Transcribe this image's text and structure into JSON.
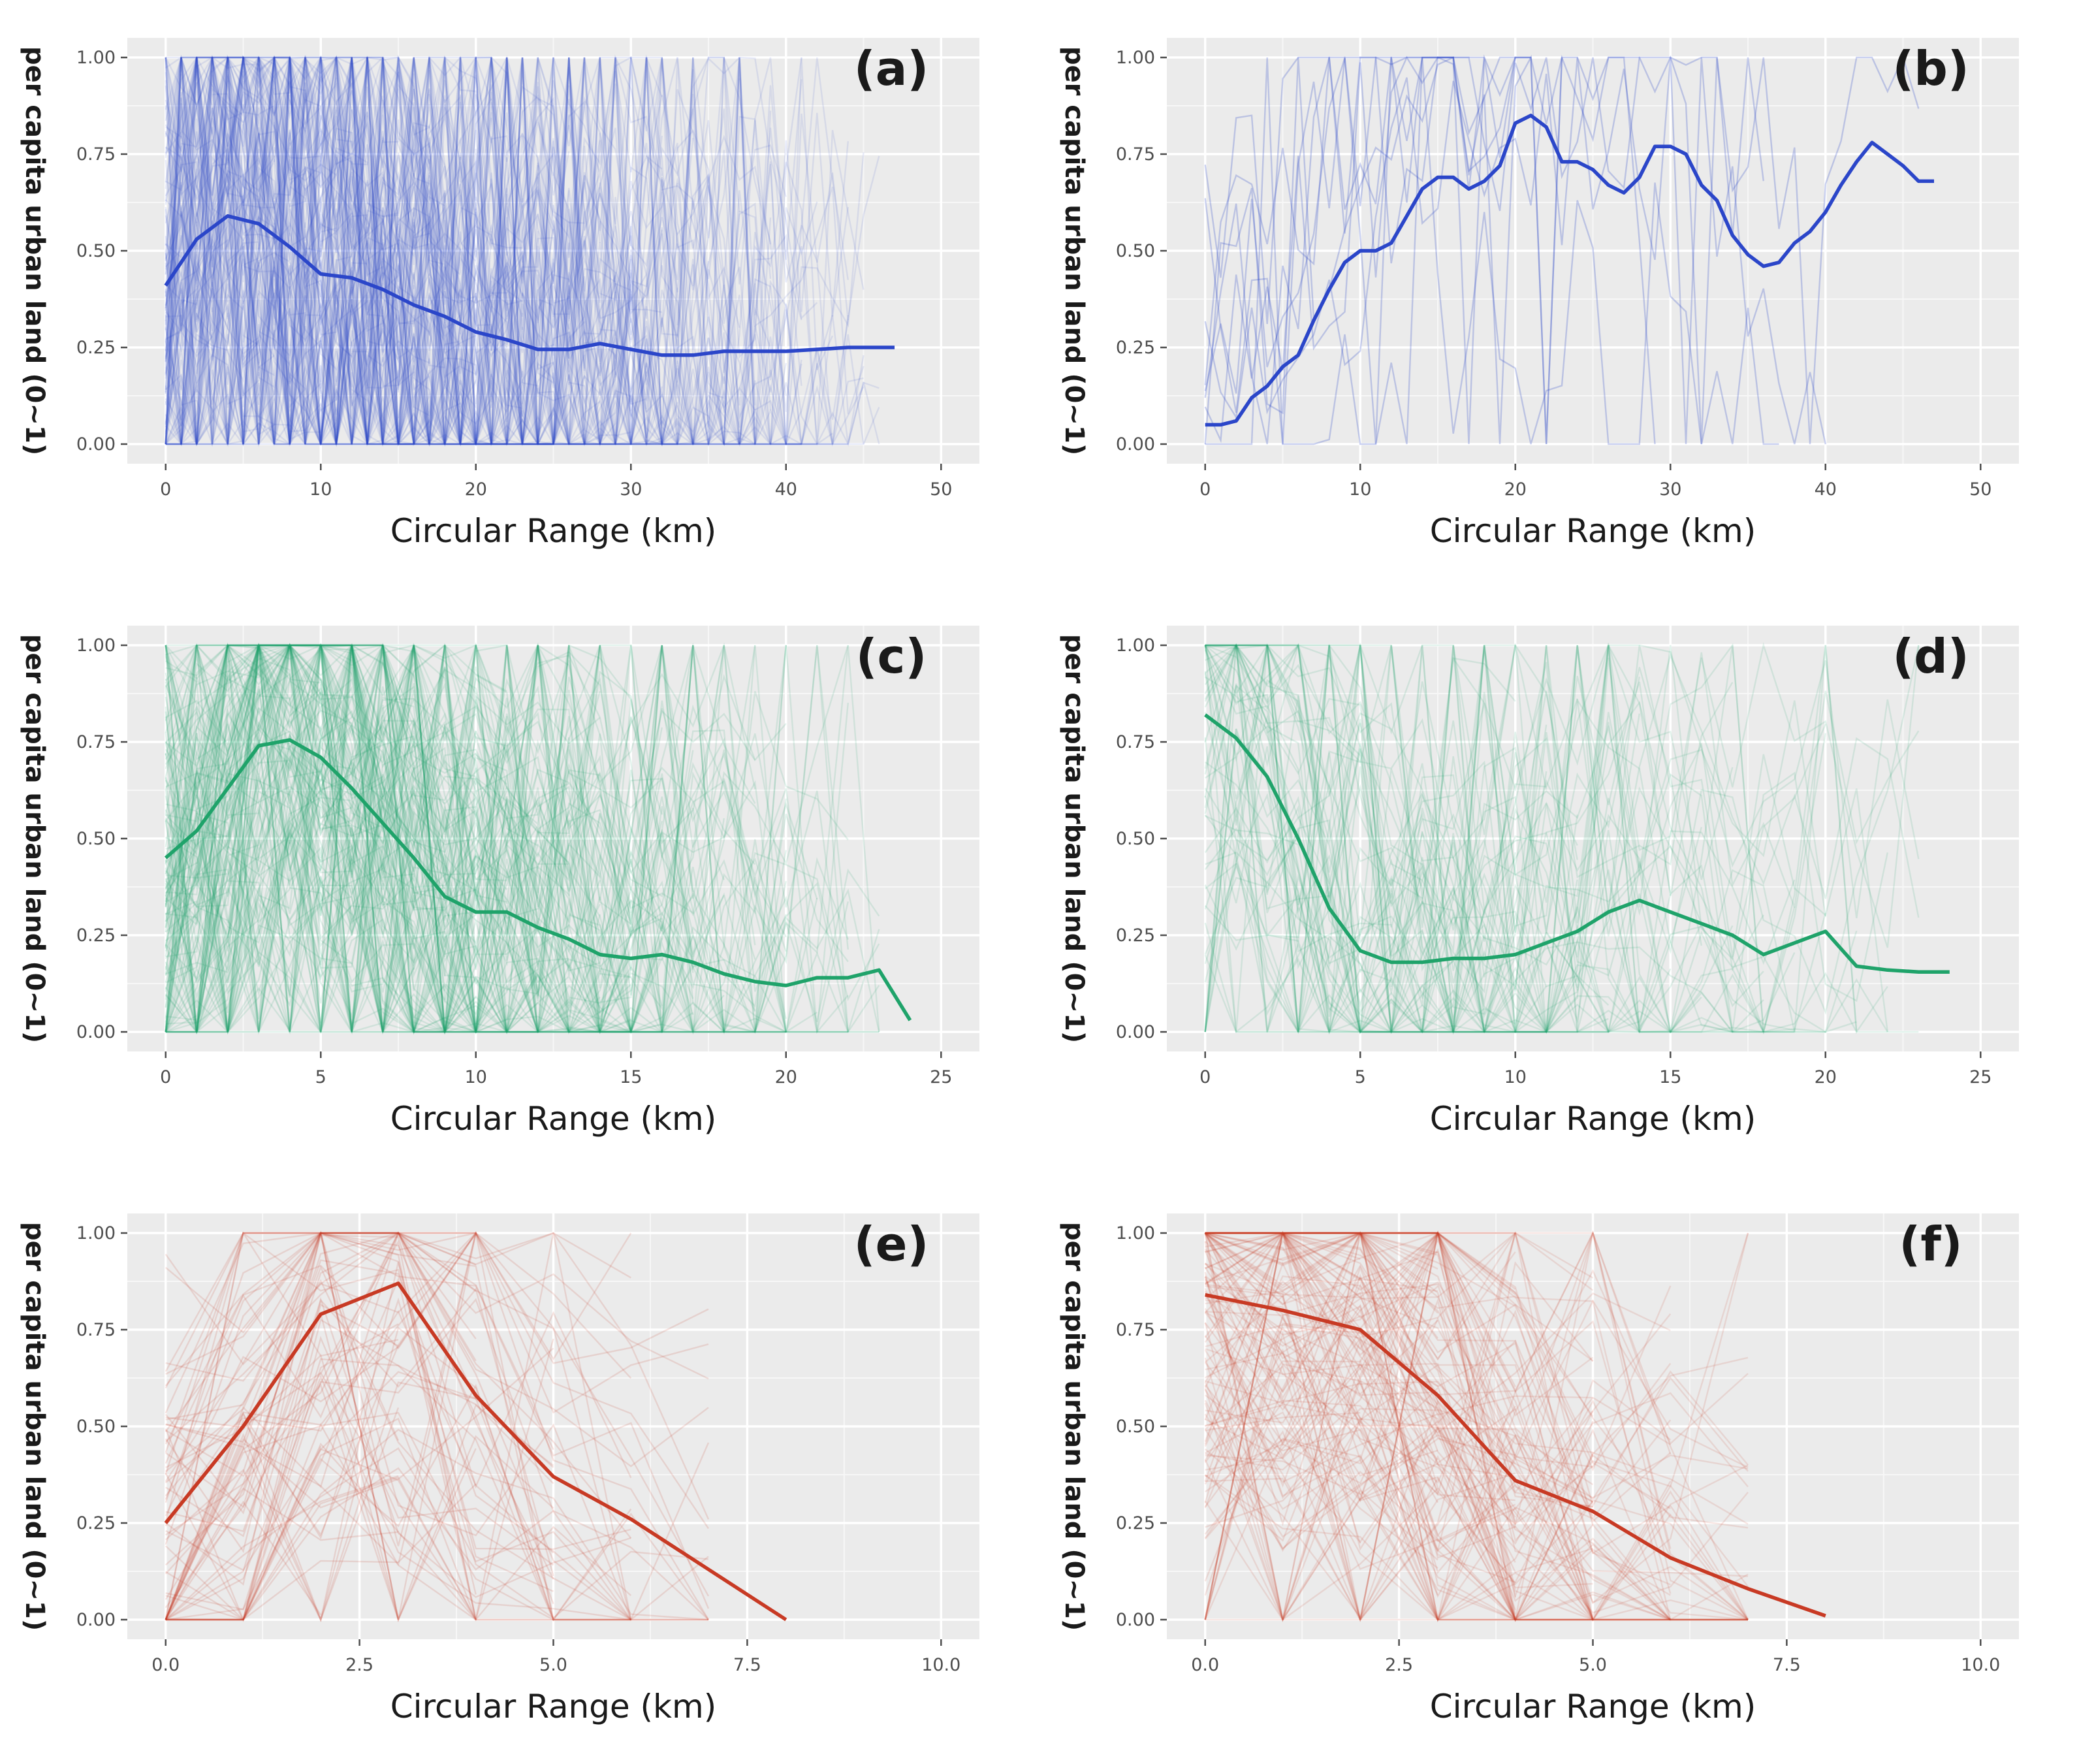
{
  "common": {
    "xlabel": "Circular Range (km)",
    "ylabel": "per capita urban land (0~1)",
    "yticks": [
      "0.00",
      "0.25",
      "0.50",
      "0.75",
      "1.00"
    ]
  },
  "colors": {
    "blue": "#2b46c9",
    "green": "#1fa36a",
    "red": "#c83a24",
    "panel_bg": "#ebebeb",
    "grid": "#ffffff"
  },
  "chart_data": [
    {
      "type": "line",
      "label": "(a)",
      "color": "blue",
      "xlabel": "Circular Range (km)",
      "ylabel": "per capita urban land (0~1)",
      "xlim": [
        0,
        50
      ],
      "ylim": [
        0,
        1
      ],
      "xticks": [
        "0",
        "10",
        "20",
        "30",
        "40",
        "50"
      ],
      "yticks": [
        "0.00",
        "0.25",
        "0.50",
        "0.75",
        "1.00"
      ],
      "grid": true,
      "mean_series": {
        "x": [
          0,
          2,
          4,
          6,
          8,
          10,
          12,
          14,
          16,
          18,
          20,
          22,
          24,
          26,
          28,
          30,
          32,
          34,
          36,
          38,
          40,
          42,
          44,
          46,
          47
        ],
        "y": [
          0.41,
          0.53,
          0.59,
          0.57,
          0.51,
          0.44,
          0.43,
          0.4,
          0.36,
          0.33,
          0.29,
          0.27,
          0.245,
          0.245,
          0.26,
          0.245,
          0.23,
          0.23,
          0.24,
          0.24,
          0.24,
          0.245,
          0.25,
          0.25,
          0.25
        ]
      },
      "background_lines": {
        "count": 150,
        "xmax": 47,
        "opacity": 0.11
      }
    },
    {
      "type": "line",
      "label": "(b)",
      "color": "blue",
      "xlabel": "Circular Range (km)",
      "ylabel": "per capita urban land (0~1)",
      "xlim": [
        0,
        50
      ],
      "ylim": [
        0,
        1
      ],
      "xticks": [
        "0",
        "10",
        "20",
        "30",
        "40",
        "50"
      ],
      "yticks": [
        "0.00",
        "0.25",
        "0.50",
        "0.75",
        "1.00"
      ],
      "grid": true,
      "mean_series": {
        "x": [
          0,
          1,
          2,
          3,
          4,
          5,
          6,
          7,
          8,
          9,
          10,
          11,
          12,
          13,
          14,
          15,
          16,
          17,
          18,
          19,
          20,
          21,
          22,
          23,
          24,
          25,
          26,
          27,
          28,
          29,
          30,
          31,
          32,
          33,
          34,
          35,
          36,
          37,
          38,
          39,
          40,
          41,
          42,
          43,
          44,
          45,
          46,
          47
        ],
        "y": [
          0.05,
          0.05,
          0.06,
          0.12,
          0.15,
          0.2,
          0.23,
          0.32,
          0.4,
          0.47,
          0.5,
          0.5,
          0.52,
          0.59,
          0.66,
          0.69,
          0.69,
          0.66,
          0.68,
          0.72,
          0.83,
          0.85,
          0.82,
          0.73,
          0.73,
          0.71,
          0.67,
          0.65,
          0.69,
          0.77,
          0.77,
          0.75,
          0.67,
          0.63,
          0.54,
          0.49,
          0.46,
          0.47,
          0.52,
          0.55,
          0.6,
          0.67,
          0.73,
          0.78,
          0.75,
          0.72,
          0.68,
          0.68
        ]
      },
      "background_lines": {
        "count": 9,
        "xmax": 47,
        "opacity": 0.25
      }
    },
    {
      "type": "line",
      "label": "(c)",
      "color": "green",
      "xlabel": "Circular Range (km)",
      "ylabel": "per capita urban land (0~1)",
      "xlim": [
        0,
        25
      ],
      "ylim": [
        0,
        1
      ],
      "xticks": [
        "0",
        "5",
        "10",
        "15",
        "20",
        "25"
      ],
      "yticks": [
        "0.00",
        "0.25",
        "0.50",
        "0.75",
        "1.00"
      ],
      "grid": true,
      "mean_series": {
        "x": [
          0,
          1,
          2,
          3,
          4,
          5,
          6,
          7,
          8,
          9,
          10,
          11,
          12,
          13,
          14,
          15,
          16,
          17,
          18,
          19,
          20,
          21,
          22,
          23,
          24
        ],
        "y": [
          0.45,
          0.52,
          0.63,
          0.74,
          0.755,
          0.71,
          0.63,
          0.54,
          0.45,
          0.35,
          0.31,
          0.31,
          0.27,
          0.24,
          0.2,
          0.19,
          0.2,
          0.18,
          0.15,
          0.13,
          0.12,
          0.14,
          0.14,
          0.16,
          0.03
        ]
      },
      "background_lines": {
        "count": 170,
        "xmax": 24,
        "opacity": 0.13
      }
    },
    {
      "type": "line",
      "label": "(d)",
      "color": "green",
      "xlabel": "Circular Range (km)",
      "ylabel": "per capita urban land (0~1)",
      "xlim": [
        0,
        25
      ],
      "ylim": [
        0,
        1
      ],
      "xticks": [
        "0",
        "5",
        "10",
        "15",
        "20",
        "25"
      ],
      "yticks": [
        "0.00",
        "0.25",
        "0.50",
        "0.75",
        "1.00"
      ],
      "grid": true,
      "mean_series": {
        "x": [
          0,
          1,
          2,
          3,
          4,
          5,
          6,
          7,
          8,
          9,
          10,
          11,
          12,
          13,
          14,
          15,
          16,
          17,
          18,
          19,
          20,
          21,
          22,
          23,
          24
        ],
        "y": [
          0.82,
          0.76,
          0.66,
          0.5,
          0.32,
          0.21,
          0.18,
          0.18,
          0.19,
          0.19,
          0.2,
          0.23,
          0.26,
          0.31,
          0.34,
          0.31,
          0.28,
          0.25,
          0.2,
          0.23,
          0.26,
          0.17,
          0.16,
          0.155,
          0.155
        ]
      },
      "background_lines": {
        "count": 70,
        "xmax": 24,
        "opacity": 0.13
      }
    },
    {
      "type": "line",
      "label": "(e)",
      "color": "red",
      "xlabel": "Circular Range (km)",
      "ylabel": "per capita urban land (0~1)",
      "xlim": [
        0,
        10
      ],
      "ylim": [
        0,
        1
      ],
      "xticks": [
        "0.0",
        "2.5",
        "5.0",
        "7.5",
        "10.0"
      ],
      "yticks": [
        "0.00",
        "0.25",
        "0.50",
        "0.75",
        "1.00"
      ],
      "grid": true,
      "mean_series": {
        "x": [
          0,
          1,
          2,
          3,
          4,
          5,
          6,
          7,
          8
        ],
        "y": [
          0.25,
          0.5,
          0.79,
          0.87,
          0.58,
          0.37,
          0.26,
          0.13,
          0.0
        ]
      },
      "background_lines": {
        "count": 80,
        "xmax": 8,
        "opacity": 0.14
      }
    },
    {
      "type": "line",
      "label": "(f)",
      "color": "red",
      "xlabel": "Circular Range (km)",
      "ylabel": "per capita urban land (0~1)",
      "xlim": [
        0,
        10
      ],
      "ylim": [
        0,
        1
      ],
      "xticks": [
        "0.0",
        "2.5",
        "5.0",
        "7.5",
        "10.0"
      ],
      "yticks": [
        "0.00",
        "0.25",
        "0.50",
        "0.75",
        "1.00"
      ],
      "grid": true,
      "mean_series": {
        "x": [
          0,
          1,
          2,
          3,
          4,
          5,
          6,
          7,
          8
        ],
        "y": [
          0.84,
          0.8,
          0.75,
          0.58,
          0.36,
          0.28,
          0.16,
          0.08,
          0.01
        ]
      },
      "background_lines": {
        "count": 160,
        "xmax": 8,
        "opacity": 0.13
      }
    }
  ]
}
